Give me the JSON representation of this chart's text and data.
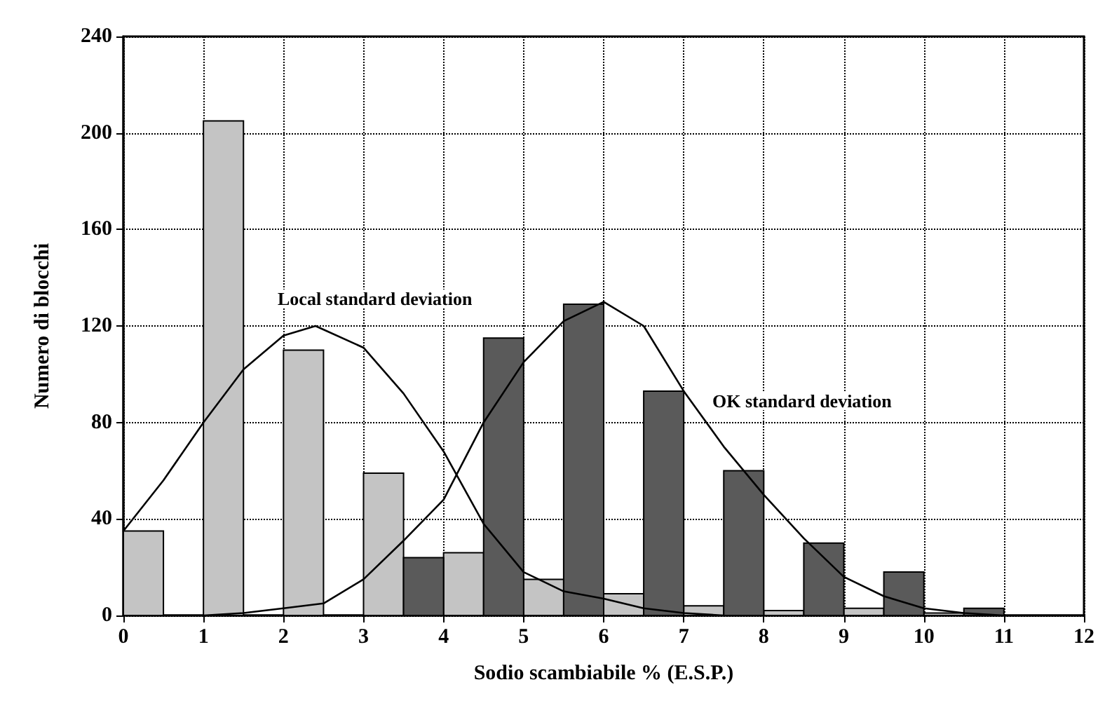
{
  "chart_data": {
    "type": "bar",
    "xlabel": "Sodio scambiabile % (E.S.P.)",
    "ylabel": "Numero di blocchi",
    "xlim": [
      0,
      12
    ],
    "xticks": [
      0,
      1,
      2,
      3,
      4,
      5,
      6,
      7,
      8,
      9,
      10,
      11,
      12
    ],
    "ylim": [
      0,
      240
    ],
    "yticks": [
      0,
      40,
      80,
      120,
      160,
      200,
      240
    ],
    "grid": true,
    "marker": "none",
    "line_style": "solid",
    "series": [
      {
        "color": "#c4c4c4",
        "x": [
          0.25,
          1.25,
          2.25,
          3.25,
          4.25,
          5.25,
          6.25,
          7.25,
          8.25,
          9.25,
          10.25
        ],
        "values": [
          35,
          205,
          110,
          59,
          26,
          15,
          9,
          4,
          2,
          3,
          1
        ]
      },
      {
        "color": "#5a5a5a",
        "x": [
          3.75,
          4.75,
          5.75,
          6.75,
          7.75,
          8.75,
          9.75,
          10.75
        ],
        "values": [
          24,
          115,
          129,
          93,
          60,
          30,
          18,
          3
        ]
      },
      {
        "type": "line",
        "color": "#000000",
        "x": [
          0,
          0.5,
          1,
          1.5,
          2,
          2.4,
          3,
          3.5,
          4,
          4.5,
          5,
          5.5,
          6,
          6.5,
          7,
          7.5
        ],
        "values": [
          35,
          56,
          80,
          102,
          116,
          120,
          111,
          92,
          68,
          38,
          18,
          10,
          7,
          3,
          1,
          0
        ]
      },
      {
        "type": "line",
        "color": "#000000",
        "x": [
          1,
          1.5,
          2,
          2.5,
          3,
          3.5,
          4,
          4.5,
          5,
          5.5,
          6,
          6.5,
          7,
          7.5,
          8,
          8.5,
          9,
          9.5,
          10,
          10.5,
          11
        ],
        "values": [
          0,
          1,
          3,
          5,
          15,
          31,
          48,
          80,
          105,
          122,
          130,
          120,
          93,
          70,
          50,
          32,
          16,
          8,
          3,
          1,
          0
        ]
      }
    ],
    "annotations": [
      "Local standard deviation",
      "OK standard deviation"
    ]
  }
}
